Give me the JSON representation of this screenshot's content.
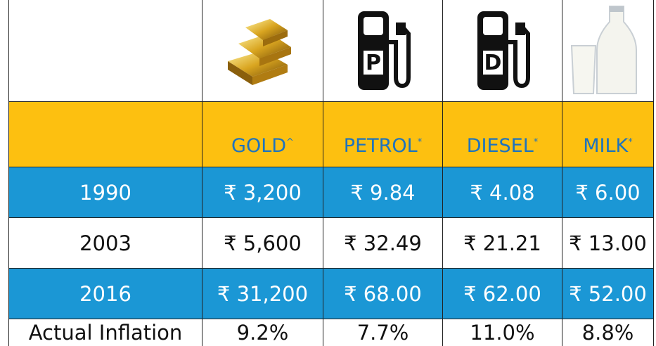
{
  "table": {
    "columns": [
      {
        "label": "GOLD",
        "note": "^"
      },
      {
        "label": "PETROL",
        "note": "*"
      },
      {
        "label": "DIESEL",
        "note": "*"
      },
      {
        "label": "MILK",
        "note": "*"
      }
    ],
    "icon_letters": [
      "P",
      "D"
    ],
    "rows": [
      [
        "1990",
        "₹ 3,200",
        "₹ 9.84",
        "₹ 4.08",
        "₹ 6.00"
      ],
      [
        "2003",
        "₹ 5,600",
        "₹ 32.49",
        "₹ 21.21",
        "₹ 13.00"
      ],
      [
        "2016",
        "₹ 31,200",
        "₹ 68.00",
        "₹ 62.00",
        "₹ 52.00"
      ],
      [
        "Actual Inflation",
        "9.2%",
        "7.7%",
        "11.0%",
        "8.8%"
      ]
    ]
  }
}
